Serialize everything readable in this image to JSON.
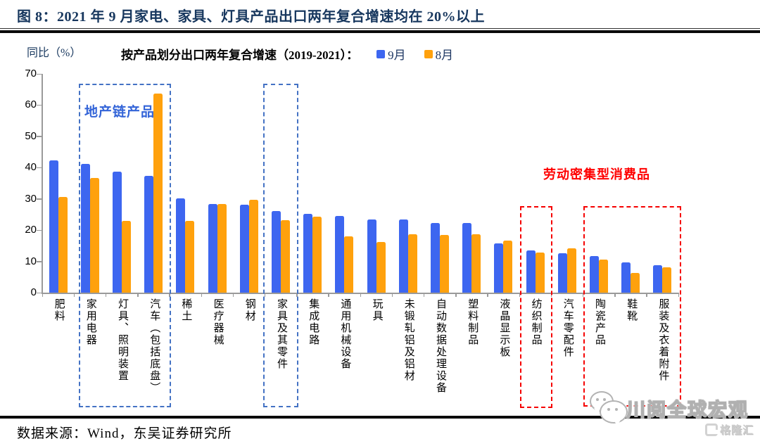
{
  "figure": {
    "title": "图 8：2021 年 9 月家电、家具、灯具产品出口两年复合增速均在 20%以上",
    "source": "数据来源：Wind，东吴证券研究所"
  },
  "chart_data": {
    "type": "bar",
    "title": "按产品划分出口两年复合增速（2019-2021）：",
    "ylabel": "同比（%）",
    "ylim": [
      0,
      70
    ],
    "yticks": [
      0,
      10,
      20,
      30,
      40,
      50,
      60,
      70
    ],
    "grid": "off",
    "legend_position": "top",
    "categories": [
      "肥料",
      "家用电器",
      "灯具、照明装置",
      "汽车（包括底盘）",
      "稀土",
      "医疗器械",
      "钢材",
      "家具及其零件",
      "集成电路",
      "通用机械设备",
      "玩具",
      "未锻轧铝及铝材",
      "自动数据处理设备",
      "塑料制品",
      "液晶显示板",
      "纺织制品",
      "汽车零配件",
      "陶瓷产品",
      "鞋靴",
      "服装及衣着附件"
    ],
    "series": [
      {
        "name": "9月",
        "color": "#3D66F0",
        "values": [
          42.4,
          41.1,
          38.8,
          37.4,
          30.2,
          28.3,
          28.1,
          26.0,
          25.2,
          24.6,
          23.3,
          23.3,
          22.3,
          22.3,
          15.8,
          13.6,
          12.6,
          11.7,
          9.6,
          8.7
        ]
      },
      {
        "name": "8月",
        "color": "#FFA10D",
        "values": [
          30.5,
          36.6,
          23.0,
          63.6,
          23.0,
          28.4,
          29.8,
          23.2,
          24.4,
          18.0,
          16.3,
          18.6,
          18.5,
          18.7,
          16.7,
          12.8,
          14.2,
          10.6,
          6.2,
          8.1
        ]
      }
    ],
    "annotations": [
      {
        "text": "地产链产品",
        "color": "#3465D8",
        "box_color": "#4472C4",
        "covers": [
          "家用电器",
          "灯具、照明装置",
          "汽车（包括底盘）",
          "家具及其零件"
        ]
      },
      {
        "text": "劳动密集型消费品",
        "color": "#FF0000",
        "box_color": "#F50000",
        "covers": [
          "纺织制品",
          "汽车零配件",
          "陶瓷产品",
          "鞋靴",
          "服装及衣着附件"
        ]
      }
    ]
  },
  "watermark": {
    "wechat_name": "川阅全球宏观",
    "logo_name": "格隆汇"
  }
}
